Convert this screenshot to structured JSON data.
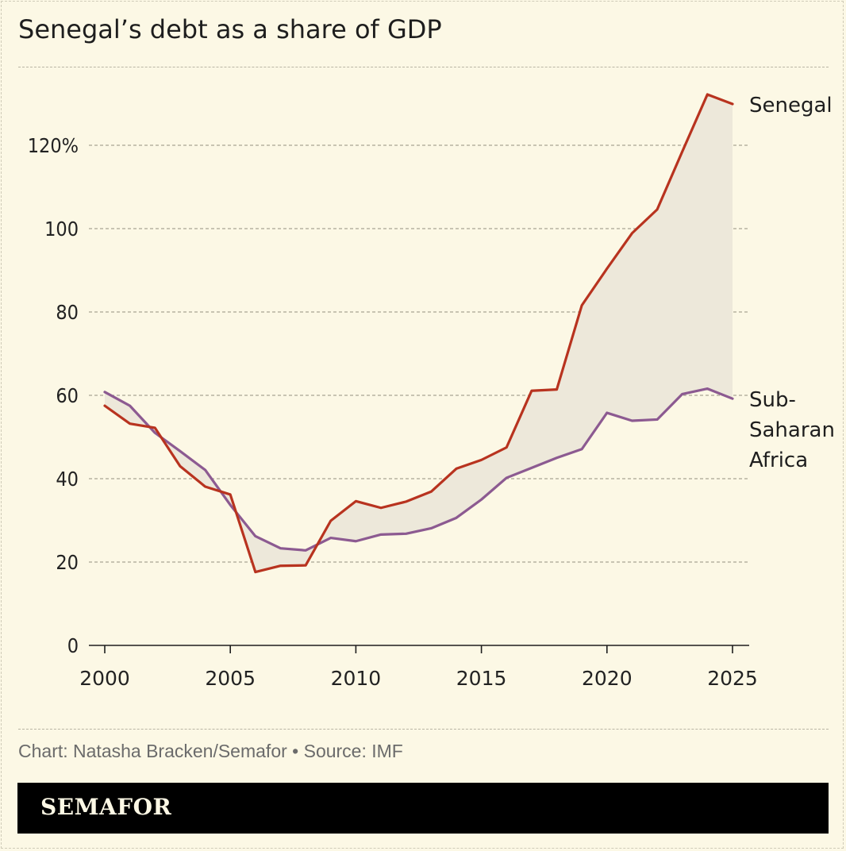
{
  "title": "Senegal’s debt as a share of GDP",
  "credit": "Chart: Natasha Bracken/Semafor • Source: IMF",
  "brand": "SEMAFOR",
  "colors": {
    "background": "#fcf8e5",
    "senegal": "#b8331f",
    "ssa": "#8c5a91",
    "fill": "#ede8da",
    "grid": "#a8a494"
  },
  "chart_data": {
    "type": "line",
    "x": [
      2000,
      2001,
      2002,
      2003,
      2004,
      2005,
      2006,
      2007,
      2008,
      2009,
      2010,
      2011,
      2012,
      2013,
      2014,
      2015,
      2016,
      2017,
      2018,
      2019,
      2020,
      2021,
      2022,
      2023,
      2024,
      2025
    ],
    "series": [
      {
        "name": "Senegal",
        "values": [
          57.5,
          53.2,
          52.2,
          43.0,
          38.1,
          36.2,
          17.6,
          19.1,
          19.2,
          29.9,
          34.6,
          33.0,
          34.5,
          36.9,
          42.4,
          44.5,
          47.5,
          61.1,
          61.4,
          81.6,
          90.4,
          98.9,
          104.6,
          118.5,
          132.2,
          129.9
        ]
      },
      {
        "name": "Sub-Saharan Africa",
        "label_lines": [
          "Sub-",
          "Saharan",
          "Africa"
        ],
        "values": [
          60.8,
          57.5,
          51.0,
          46.6,
          42.1,
          33.7,
          26.2,
          23.3,
          22.8,
          25.8,
          25.0,
          26.6,
          26.8,
          28.1,
          30.6,
          35.0,
          40.2,
          42.6,
          45.0,
          47.1,
          55.8,
          53.9,
          54.2,
          60.3,
          61.6,
          59.2
        ]
      }
    ],
    "y_ticks": [
      0,
      20,
      40,
      60,
      80,
      100,
      120
    ],
    "y_tick_labels": [
      "0",
      "20",
      "40",
      "60",
      "80",
      "100",
      "120%"
    ],
    "x_ticks": [
      2000,
      2005,
      2010,
      2015,
      2020,
      2025
    ],
    "x_tick_labels": [
      "2000",
      "2005",
      "2010",
      "2015",
      "2020",
      "2025"
    ],
    "xlim": [
      2000,
      2025
    ],
    "ylim": [
      0,
      138
    ],
    "grid": true,
    "shaded_gap": true
  }
}
